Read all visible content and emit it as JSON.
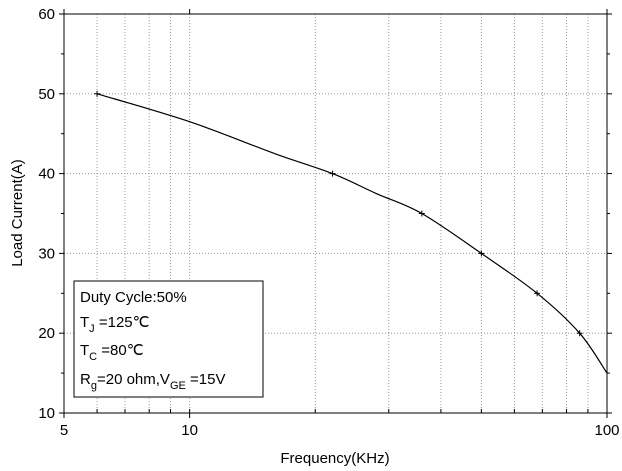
{
  "chart_data": {
    "type": "line",
    "title": "",
    "xlabel": "Frequency(KHz)",
    "ylabel": "Load Current(A)",
    "x_scale": "log",
    "xlim": [
      5,
      100
    ],
    "ylim": [
      10,
      60
    ],
    "x_ticks": [
      5,
      10,
      100
    ],
    "y_ticks": [
      10,
      20,
      30,
      40,
      50,
      60
    ],
    "grid": true,
    "series": [
      {
        "points": [
          [
            6,
            50
          ],
          [
            22,
            40
          ],
          [
            36,
            35
          ],
          [
            50,
            30
          ],
          [
            68,
            25
          ],
          [
            86,
            20
          ]
        ],
        "curve": [
          [
            6,
            50
          ],
          [
            10,
            46.5
          ],
          [
            16,
            42.5
          ],
          [
            22,
            40
          ],
          [
            28,
            37.5
          ],
          [
            36,
            35
          ],
          [
            50,
            30
          ],
          [
            68,
            25
          ],
          [
            86,
            20
          ],
          [
            100,
            15
          ]
        ]
      }
    ],
    "annotation_box": {
      "placement": "bottom-left",
      "lines": [
        {
          "main": "Duty Cycle:50%"
        },
        {
          "main": "T",
          "sub": "J",
          "rest": " =125℃"
        },
        {
          "main": "T",
          "sub": "C",
          "rest": " =80℃"
        },
        {
          "main": "R",
          "sub": "g",
          "rest": "=20 ohm,V",
          "sub2": "GE",
          "rest2": " =15V"
        }
      ]
    }
  }
}
